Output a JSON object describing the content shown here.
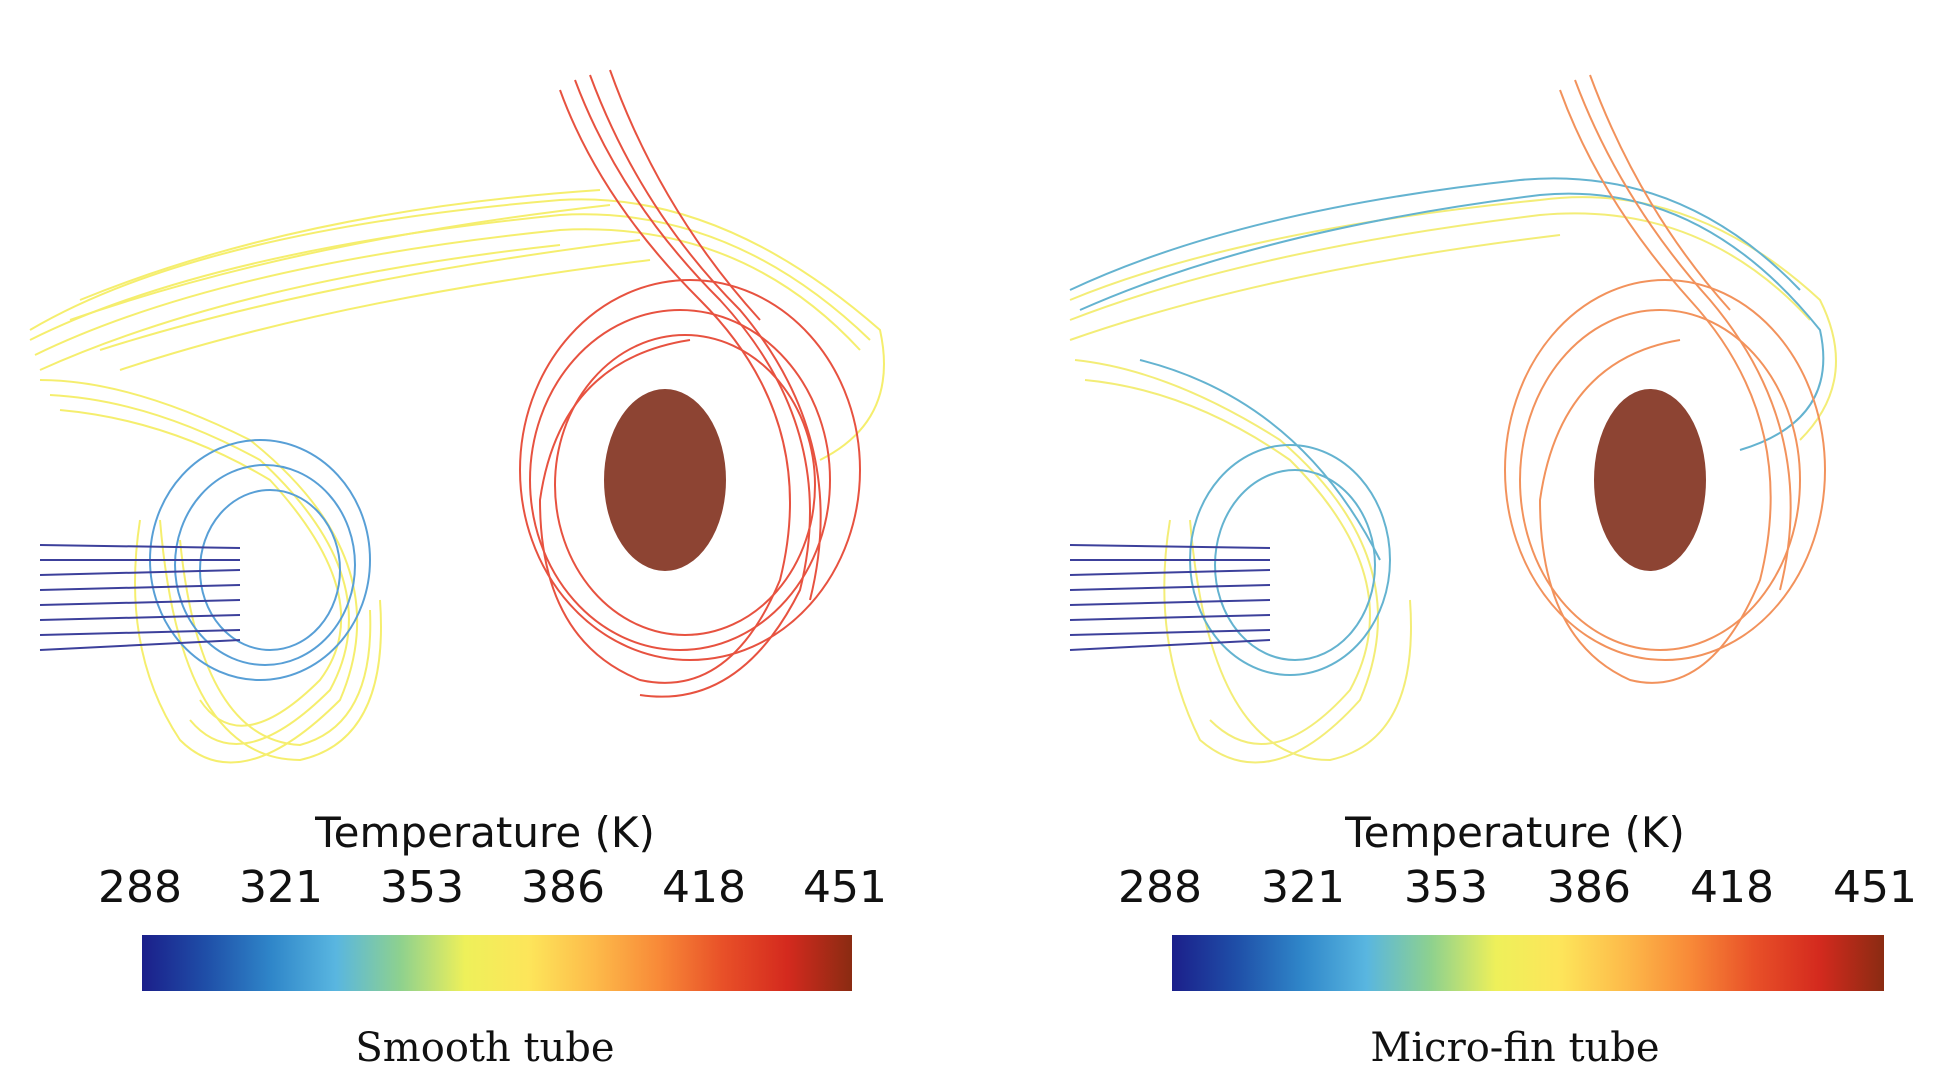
{
  "colormap": {
    "stops": [
      "#1b1f8a",
      "#1f4fa8",
      "#2f86c9",
      "#59b6e0",
      "#8ed18e",
      "#eef05a",
      "#fde55a",
      "#fdbb4a",
      "#f88a38",
      "#e85028",
      "#d42a1e",
      "#8a2b12"
    ]
  },
  "panels": [
    {
      "id": "smooth",
      "colorbar_title": "Temperature (K)",
      "colorbar_ticks": [
        "288",
        "321",
        "353",
        "386",
        "418",
        "451"
      ],
      "caption": "Smooth tube"
    },
    {
      "id": "microfin",
      "colorbar_title": "Temperature (K)",
      "colorbar_ticks": [
        "288",
        "321",
        "353",
        "386",
        "418",
        "451"
      ],
      "caption": "Micro-fin tube"
    }
  ]
}
